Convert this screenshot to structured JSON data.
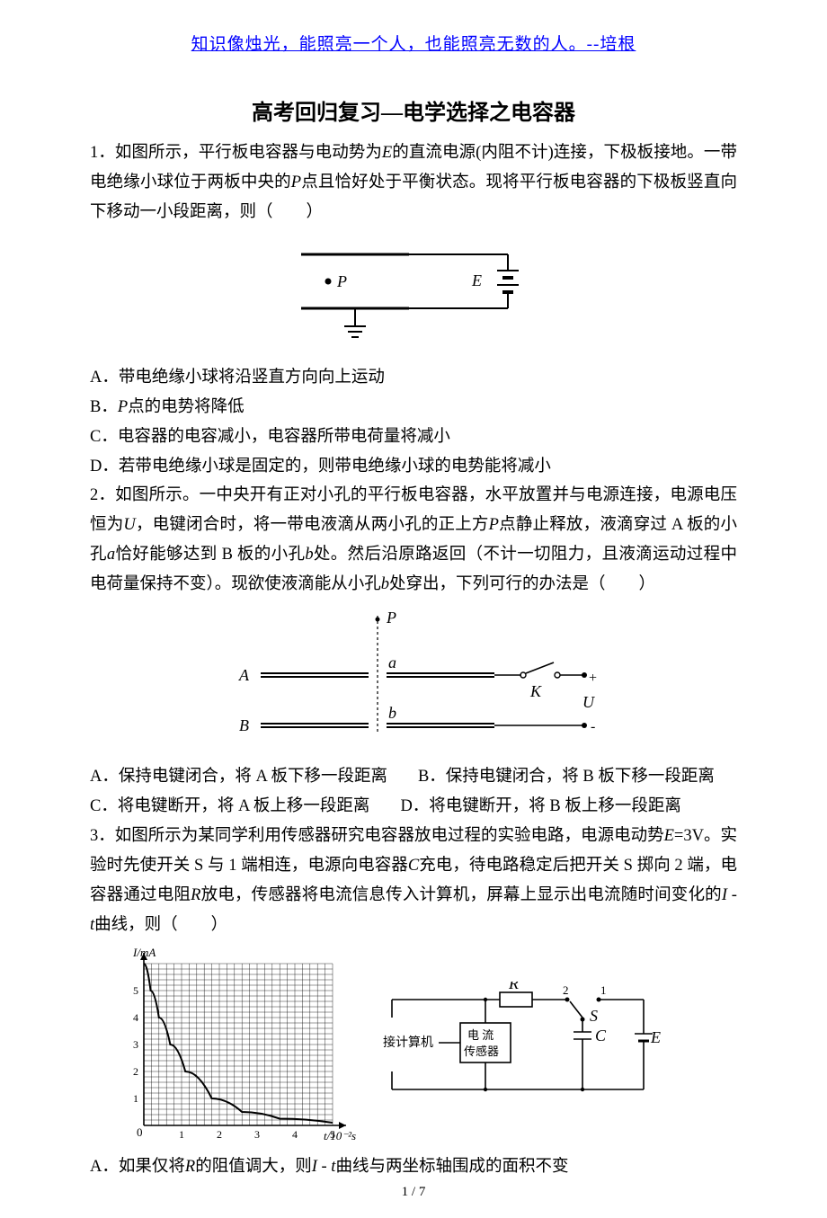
{
  "epigraph": "知识像烛光，能照亮一个人，也能照亮无数的人。--培根",
  "title": "高考回归复习—电学选择之电容器",
  "q1": {
    "stem_a": "1．如图所示，平行板电容器与电动势为",
    "E": "E",
    "stem_b": "的直流电源(内阻不计)连接，下极板接地。一带电绝缘小球位于两板中央的",
    "P": "P",
    "stem_c": "点且恰好处于平衡状态。现将平行板电容器的下极板竖直向下移动一小段距离，则（　　）",
    "fig": {
      "P_label": "P",
      "E_label": "E"
    },
    "optA": "A．带电绝缘小球将沿竖直方向向上运动",
    "optB_a": "B．",
    "optB_P": "P",
    "optB_b": "点的电势将降低",
    "optC": "C．电容器的电容减小，电容器所带电荷量将减小",
    "optD": "D．若带电绝缘小球是固定的，则带电绝缘小球的电势能将减小"
  },
  "q2": {
    "stem_a": "2．如图所示。一中央开有正对小孔的平行板电容器，水平放置并与电源连接，电源电压恒为",
    "U": "U",
    "stem_b": "，电键闭合时，将一带电液滴从两小孔的正上方",
    "P": "P",
    "stem_c": "点静止释放，液滴穿过 A 板的小孔",
    "a": "a",
    "stem_d": "恰好能够达到 B 板的小孔",
    "b": "b",
    "stem_e": "处。然后沿原路返回（不计一切阻力，且液滴运动过程中电荷量保持不变）。现欲使液滴能从小孔",
    "b2": "b",
    "stem_f": "处穿出，下列可行的办法是（　　）",
    "fig": {
      "A": "A",
      "B": "B",
      "P": "P",
      "a": "a",
      "b": "b",
      "K": "K",
      "U": "U"
    },
    "optA": "A．保持电键闭合，将 A 板下移一段距离",
    "optB": "B．保持电键闭合，将 B 板下移一段距离",
    "optC": "C．将电键断开，将 A 板上移一段距离",
    "optD": "D．将电键断开，将 B 板上移一段距离"
  },
  "q3": {
    "stem_a": "3．如图所示为某同学利用传感器研究电容器放电过程的实验电路，电源电动势",
    "E": "E",
    "stem_b": "=3V。实验时先使开关 S 与 1 端相连，电源向电容器",
    "C": "C",
    "stem_c": "充电，待电路稳定后把开关 S 掷向 2 端，电容器通过电阻",
    "R": "R",
    "stem_d": "放电，传感器将电流信息传入计算机，屏幕上显示出电流随时间变化的",
    "I": "I",
    "dash": " - ",
    "t": "t",
    "stem_e": "曲线，则（　　）",
    "graph": {
      "ylabel": "I/mA",
      "xlabel": "t/10⁻²s",
      "xticks": [
        "0",
        "1",
        "2",
        "3",
        "4",
        "5"
      ],
      "yticks": [
        "1",
        "2",
        "3",
        "4",
        "5"
      ],
      "points": [
        [
          0,
          6
        ],
        [
          0.18,
          5
        ],
        [
          0.4,
          4
        ],
        [
          0.7,
          3
        ],
        [
          1.1,
          2
        ],
        [
          1.8,
          1
        ],
        [
          2.6,
          0.5
        ],
        [
          3.6,
          0.25
        ],
        [
          5,
          0.1
        ]
      ]
    },
    "circuit": {
      "R": "R",
      "sensor_l1": "电 流",
      "sensor_l2": "传感器",
      "computer": "接计算机",
      "C": "C",
      "E": "E",
      "S": "S",
      "one": "1",
      "two": "2"
    },
    "optA_a": "A．如果仅将",
    "optA_R": "R",
    "optA_b": "的阻值调大，则",
    "optA_I": "I",
    "optA_dash": " - ",
    "optA_t": "t",
    "optA_c": "曲线与两坐标轴围成的面积不变"
  },
  "pagenum": "1 / 7"
}
